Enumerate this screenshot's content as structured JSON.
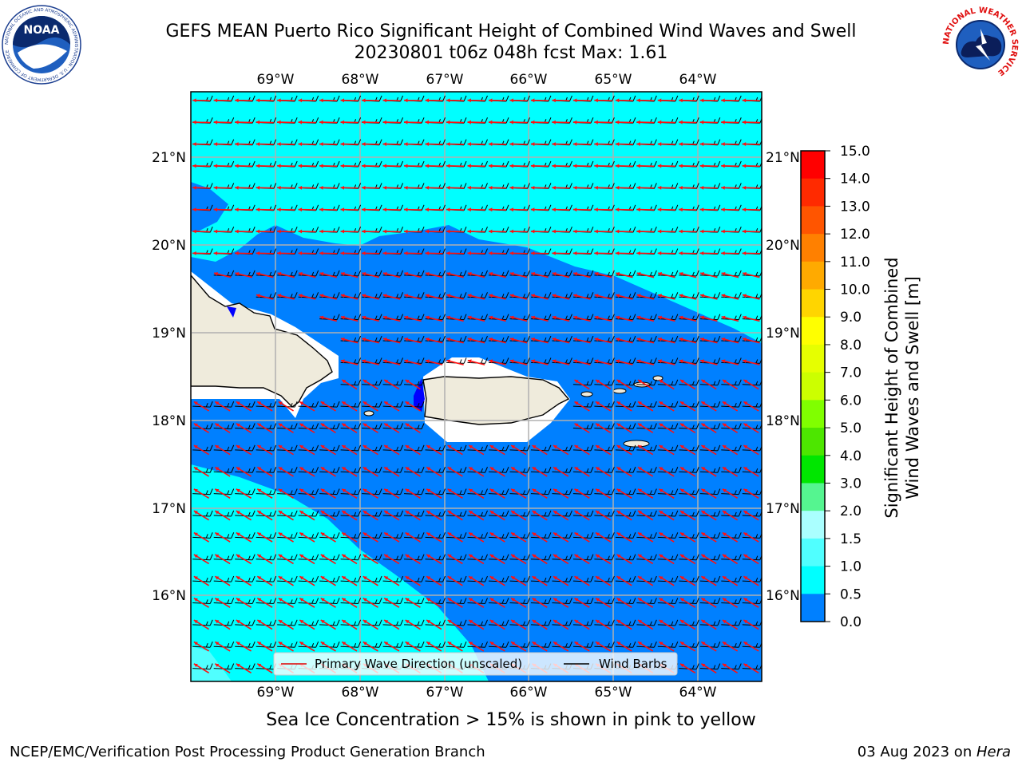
{
  "title": {
    "line1": "GEFS MEAN Puerto Rico Significant Height of Combined Wind Waves and Swell",
    "line2": "20230801 t06z 048h fcst   Max: 1.61"
  },
  "map": {
    "lon_ticks": [
      "69°W",
      "68°W",
      "67°W",
      "66°W",
      "65°W",
      "64°W"
    ],
    "lat_ticks": [
      "21°N",
      "20°N",
      "19°N",
      "18°N",
      "17°N",
      "16°N"
    ],
    "ocean_colors": {
      "band_0_5": "#0000ff",
      "band_0_5_1_0": "#0080ff",
      "band_1_0_1_5": "#00ffff",
      "band_1_5_2_0": "#50ffff"
    },
    "land_color": "#efebdc",
    "legend": {
      "primary_wave": "Primary Wave Direction (unscaled)",
      "wind_barbs": "Wind Barbs"
    }
  },
  "colorbar": {
    "label_line1": "Significant Height of Combined",
    "label_line2": "Wind Waves and Swell [m]",
    "ticks": [
      "15.0",
      "14.0",
      "13.0",
      "12.0",
      "11.0",
      "10.0",
      "9.0",
      "8.0",
      "7.0",
      "6.0",
      "5.0",
      "4.0",
      "3.0",
      "2.0",
      "1.5",
      "1.0",
      "0.5",
      "0.0"
    ],
    "colors": [
      "#ff0000",
      "#ff2a00",
      "#ff5500",
      "#ff8000",
      "#ffaa00",
      "#ffd500",
      "#ffff00",
      "#e6ff00",
      "#ccff00",
      "#80ff00",
      "#4de600",
      "#00e600",
      "#55f590",
      "#aaffff",
      "#50ffff",
      "#00ffff",
      "#0080ff",
      "#0000ff"
    ]
  },
  "caption": "Sea Ice Concentration > 15% is shown in pink to yellow",
  "footer": {
    "left": "NCEP/EMC/Verification Post Processing Product Generation Branch",
    "date": "03 Aug 2023 on ",
    "host": "Hera"
  },
  "logos": {
    "noaa": "NOAA",
    "nws": "NATIONAL WEATHER SERVICE",
    "noaa_ring": "NATIONAL OCEANIC AND ATMOSPHERIC ADMINISTRATION · U.S. DEPARTMENT OF COMMERCE"
  }
}
